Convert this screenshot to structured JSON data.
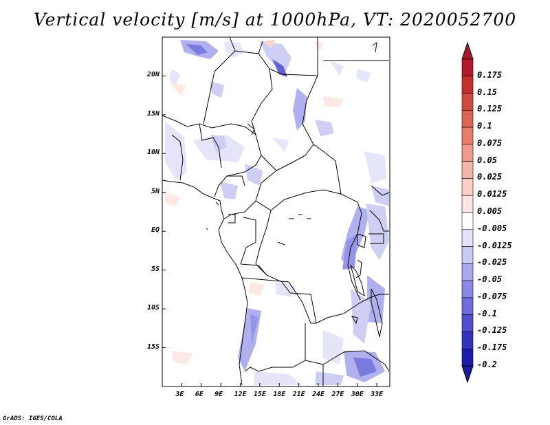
{
  "title": "Vertical velocity [m/s] at 1000hPa, VT: 2020052700",
  "credit": "GrADS: IGES/COLA",
  "map": {
    "lon_range": [
      0,
      35
    ],
    "lat_range": [
      -20,
      25
    ],
    "lat_labels": [
      "20N",
      "15N",
      "10N",
      "5N",
      "EQ",
      "5S",
      "10S",
      "15S"
    ],
    "lat_values": [
      20,
      15,
      10,
      5,
      0,
      -5,
      -10,
      -15
    ],
    "lon_labels": [
      "3E",
      "6E",
      "9E",
      "12E",
      "15E",
      "18E",
      "21E",
      "24E",
      "27E",
      "30E",
      "33E"
    ],
    "lon_values": [
      3,
      6,
      9,
      12,
      15,
      18,
      21,
      24,
      27,
      30,
      33
    ]
  },
  "colorbar": {
    "levels": [
      {
        "label": "0.175",
        "color": "#b2182b"
      },
      {
        "label": "0.15",
        "color": "#c4302e"
      },
      {
        "label": "0.125",
        "color": "#d04a40"
      },
      {
        "label": "0.1",
        "color": "#dd6354"
      },
      {
        "label": "0.075",
        "color": "#e67e6d"
      },
      {
        "label": "0.05",
        "color": "#ee9a8b"
      },
      {
        "label": "0.025",
        "color": "#f4b6aa"
      },
      {
        "label": "0.0125",
        "color": "#f9cfc7"
      },
      {
        "label": "0.005",
        "color": "#fde6e2"
      },
      {
        "label": "-0.005",
        "color": "#ffffff"
      },
      {
        "label": "-0.0125",
        "color": "#e3e3fa"
      },
      {
        "label": "-0.025",
        "color": "#c9c9f5"
      },
      {
        "label": "-0.05",
        "color": "#a8a8ee"
      },
      {
        "label": "-0.075",
        "color": "#8a8ae6"
      },
      {
        "label": "-0.1",
        "color": "#6d6ddc"
      },
      {
        "label": "-0.125",
        "color": "#5050cf"
      },
      {
        "label": "-0.175",
        "color": "#3434bf"
      },
      {
        "label": "-0.2",
        "color": "#1d1dab"
      }
    ],
    "top_color": "#a51a25",
    "bottom_color": "#1a1a9a"
  }
}
